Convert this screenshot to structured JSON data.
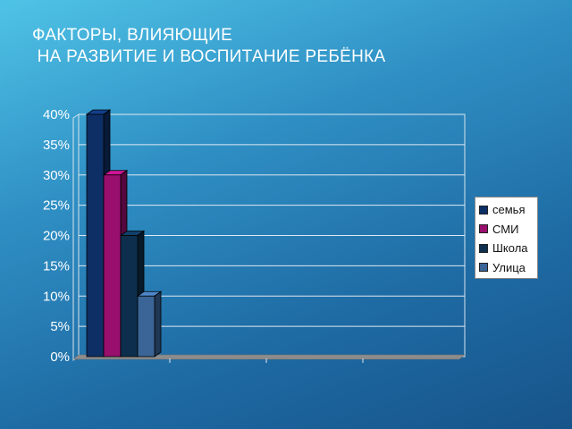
{
  "slide": {
    "title_line1": "ФАКТОРЫ, ВЛИЯЮЩИЕ",
    "title_line2": " НА РАЗВИТИЕ И ВОСПИТАНИЕ РЕБЁНКА"
  },
  "chart_data": {
    "type": "bar",
    "title": "",
    "xlabel": "",
    "ylabel": "",
    "y_ticks": [
      "0%",
      "5%",
      "10%",
      "15%",
      "20%",
      "25%",
      "30%",
      "35%",
      "40%"
    ],
    "ylim": [
      0,
      40
    ],
    "grid": true,
    "legend_position": "right",
    "series": [
      {
        "name": "семья",
        "values": [
          40
        ],
        "color": "#0e2f66"
      },
      {
        "name": "СМИ",
        "values": [
          30
        ],
        "color": "#990f6e"
      },
      {
        "name": "Школа",
        "values": [
          20
        ],
        "color": "#0d2f4d"
      },
      {
        "name": "Улица",
        "values": [
          10
        ],
        "color": "#3a6596"
      }
    ]
  }
}
